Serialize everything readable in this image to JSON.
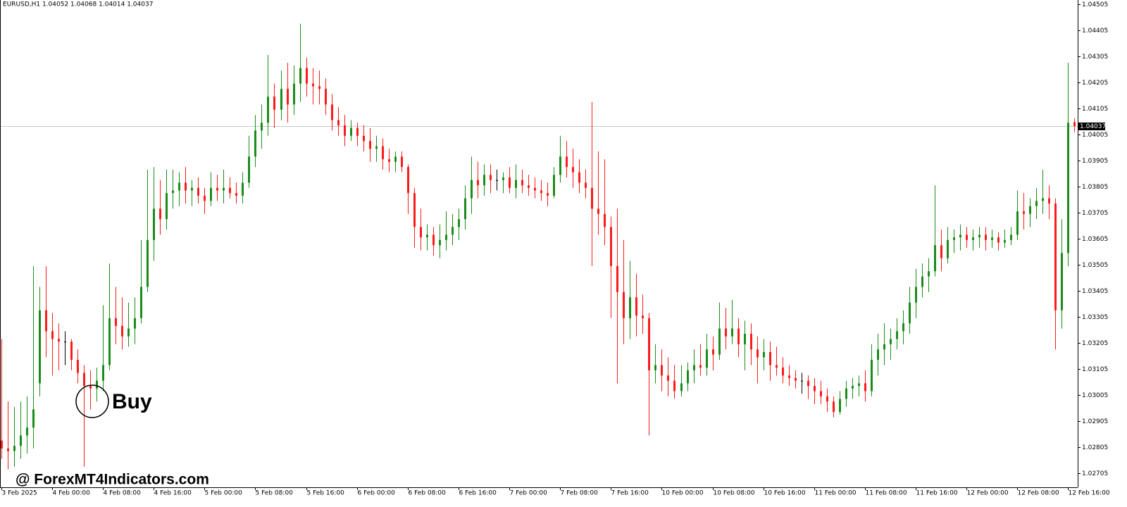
{
  "chart_data": {
    "type": "candlestick",
    "title": "EURUSD,H1  1.04052 1.04068 1.04014 1.04037",
    "current_price": 1.04037,
    "annotation": "Buy",
    "watermark": "@ ForexMT4Indicators.com",
    "up_color": "#1a8c1a",
    "down_color": "#ff1a1a",
    "doji_color": "#000000",
    "price_line_color": "#c8c8c8",
    "ylim": [
      1.02651,
      1.04521
    ],
    "yticks": [
      1.04505,
      1.04405,
      1.04305,
      1.04205,
      1.04105,
      1.04005,
      1.03905,
      1.03805,
      1.03705,
      1.03605,
      1.03505,
      1.03405,
      1.03305,
      1.03205,
      1.03105,
      1.03005,
      1.02905,
      1.02805,
      1.02705
    ],
    "xlim": [
      -0.2,
      169.5
    ],
    "xticks": [
      {
        "value": 0,
        "label": "3 Feb 2025"
      },
      {
        "value": 8,
        "label": "4 Feb 00:00"
      },
      {
        "value": 16,
        "label": "4 Feb 08:00"
      },
      {
        "value": 24,
        "label": "4 Feb 16:00"
      },
      {
        "value": 32,
        "label": "5 Feb 00:00"
      },
      {
        "value": 40,
        "label": "5 Feb 08:00"
      },
      {
        "value": 48,
        "label": "5 Feb 16:00"
      },
      {
        "value": 56,
        "label": "6 Feb 00:00"
      },
      {
        "value": 64,
        "label": "6 Feb 08:00"
      },
      {
        "value": 72,
        "label": "6 Feb 16:00"
      },
      {
        "value": 80,
        "label": "7 Feb 00:00"
      },
      {
        "value": 88,
        "label": "7 Feb 08:00"
      },
      {
        "value": 96,
        "label": "7 Feb 16:00"
      },
      {
        "value": 104,
        "label": "10 Feb 00:00"
      },
      {
        "value": 112,
        "label": "10 Feb 08:00"
      },
      {
        "value": 120,
        "label": "10 Feb 16:00"
      },
      {
        "value": 128,
        "label": "11 Feb 00:00"
      },
      {
        "value": 136,
        "label": "11 Feb 08:00"
      },
      {
        "value": 144,
        "label": "11 Feb 16:00"
      },
      {
        "value": 152,
        "label": "12 Feb 00:00"
      },
      {
        "value": 160,
        "label": "12 Feb 08:00"
      },
      {
        "value": 168,
        "label": "12 Feb 16:00"
      }
    ],
    "ohlc": [
      [
        1.0283,
        1.0322,
        1.0276,
        1.028
      ],
      [
        1.028,
        1.0298,
        1.0272,
        1.0279
      ],
      [
        1.0279,
        1.0296,
        1.0273,
        1.0281
      ],
      [
        1.0281,
        1.0298,
        1.0276,
        1.0285
      ],
      [
        1.0285,
        1.03,
        1.0278,
        1.0288
      ],
      [
        1.0288,
        1.035,
        1.028,
        1.0295
      ],
      [
        1.0305,
        1.0342,
        1.03,
        1.0333
      ],
      [
        1.0333,
        1.035,
        1.0315,
        1.0325
      ],
      [
        1.0325,
        1.0332,
        1.0308,
        1.0322
      ],
      [
        1.0322,
        1.0328,
        1.031,
        1.0321
      ],
      [
        1.0321,
        1.0325,
        1.0312,
        1.0321
      ],
      [
        1.0321,
        1.0322,
        1.031,
        1.0314
      ],
      [
        1.0314,
        1.0318,
        1.0305,
        1.0309
      ],
      [
        1.0309,
        1.0312,
        1.0273,
        1.0304
      ],
      [
        1.0304,
        1.031,
        1.0295,
        1.0303
      ],
      [
        1.0303,
        1.0311,
        1.0298,
        1.0306
      ],
      [
        1.0306,
        1.0335,
        1.0302,
        1.0312
      ],
      [
        1.0312,
        1.0351,
        1.031,
        1.033
      ],
      [
        1.033,
        1.0342,
        1.032,
        1.0327
      ],
      [
        1.0327,
        1.0338,
        1.0318,
        1.0323
      ],
      [
        1.0323,
        1.0336,
        1.0319,
        1.0326
      ],
      [
        1.0326,
        1.0338,
        1.032,
        1.033
      ],
      [
        1.033,
        1.036,
        1.0328,
        1.0342
      ],
      [
        1.0342,
        1.0387,
        1.034,
        1.036
      ],
      [
        1.036,
        1.0388,
        1.0352,
        1.0372
      ],
      [
        1.0372,
        1.0383,
        1.0362,
        1.0368
      ],
      [
        1.0368,
        1.0387,
        1.0364,
        1.0378
      ],
      [
        1.0378,
        1.0387,
        1.0372,
        1.0379
      ],
      [
        1.0379,
        1.0386,
        1.0373,
        1.0382
      ],
      [
        1.0382,
        1.0388,
        1.0374,
        1.0379
      ],
      [
        1.0379,
        1.0383,
        1.0373,
        1.038
      ],
      [
        1.038,
        1.0384,
        1.0374,
        1.0377
      ],
      [
        1.0377,
        1.038,
        1.037,
        1.0375
      ],
      [
        1.0375,
        1.0386,
        1.0373,
        1.038
      ],
      [
        1.038,
        1.0385,
        1.0375,
        1.0379
      ],
      [
        1.0379,
        1.0387,
        1.0374,
        1.038
      ],
      [
        1.038,
        1.0384,
        1.0376,
        1.0378
      ],
      [
        1.0378,
        1.0382,
        1.0374,
        1.0377
      ],
      [
        1.0377,
        1.0386,
        1.0374,
        1.0382
      ],
      [
        1.0382,
        1.04,
        1.038,
        1.0392
      ],
      [
        1.0392,
        1.0408,
        1.0388,
        1.0402
      ],
      [
        1.0402,
        1.0412,
        1.0395,
        1.0405
      ],
      [
        1.0405,
        1.0431,
        1.04,
        1.0415
      ],
      [
        1.0415,
        1.042,
        1.0403,
        1.041
      ],
      [
        1.041,
        1.0425,
        1.0406,
        1.0418
      ],
      [
        1.0418,
        1.0428,
        1.0405,
        1.0412
      ],
      [
        1.0412,
        1.0427,
        1.0408,
        1.042
      ],
      [
        1.042,
        1.0443,
        1.0413,
        1.0426
      ],
      [
        1.0426,
        1.043,
        1.0415,
        1.042
      ],
      [
        1.042,
        1.0426,
        1.0412,
        1.0419
      ],
      [
        1.0419,
        1.0425,
        1.0412,
        1.0418
      ],
      [
        1.0418,
        1.0422,
        1.0408,
        1.0412
      ],
      [
        1.0412,
        1.0416,
        1.0402,
        1.0406
      ],
      [
        1.0406,
        1.0411,
        1.04,
        1.0404
      ],
      [
        1.0404,
        1.0408,
        1.0396,
        1.04
      ],
      [
        1.04,
        1.0406,
        1.0398,
        1.0403
      ],
      [
        1.0403,
        1.0405,
        1.0396,
        1.04
      ],
      [
        1.04,
        1.0404,
        1.0394,
        1.0398
      ],
      [
        1.0398,
        1.0403,
        1.039,
        1.0395
      ],
      [
        1.0395,
        1.04,
        1.039,
        1.0396
      ],
      [
        1.0396,
        1.0399,
        1.0387,
        1.0391
      ],
      [
        1.0391,
        1.0395,
        1.0386,
        1.039
      ],
      [
        1.039,
        1.0394,
        1.0386,
        1.0392
      ],
      [
        1.0392,
        1.0394,
        1.0386,
        1.0388
      ],
      [
        1.0388,
        1.0389,
        1.037,
        1.0378
      ],
      [
        1.0378,
        1.038,
        1.0357,
        1.0365
      ],
      [
        1.0365,
        1.0372,
        1.0356,
        1.0361
      ],
      [
        1.0361,
        1.0366,
        1.0356,
        1.0362
      ],
      [
        1.0362,
        1.0365,
        1.0354,
        1.0358
      ],
      [
        1.0358,
        1.0366,
        1.0353,
        1.036
      ],
      [
        1.036,
        1.0371,
        1.0356,
        1.0362
      ],
      [
        1.0362,
        1.037,
        1.0358,
        1.0365
      ],
      [
        1.0365,
        1.0372,
        1.036,
        1.0368
      ],
      [
        1.0368,
        1.0381,
        1.0364,
        1.0376
      ],
      [
        1.0376,
        1.0392,
        1.037,
        1.0383
      ],
      [
        1.0383,
        1.039,
        1.0376,
        1.0381
      ],
      [
        1.0381,
        1.0389,
        1.0377,
        1.0385
      ],
      [
        1.0385,
        1.0389,
        1.0378,
        1.0383
      ],
      [
        1.0383,
        1.0387,
        1.0379,
        1.0383
      ],
      [
        1.0383,
        1.0386,
        1.0378,
        1.0384
      ],
      [
        1.0384,
        1.0388,
        1.0378,
        1.038
      ],
      [
        1.038,
        1.0389,
        1.0376,
        1.0383
      ],
      [
        1.0383,
        1.0387,
        1.0378,
        1.0381
      ],
      [
        1.0381,
        1.0385,
        1.0377,
        1.038
      ],
      [
        1.038,
        1.0384,
        1.0376,
        1.0379
      ],
      [
        1.0379,
        1.0383,
        1.0375,
        1.0378
      ],
      [
        1.0378,
        1.0382,
        1.0373,
        1.0377
      ],
      [
        1.0377,
        1.0388,
        1.0376,
        1.0385
      ],
      [
        1.0385,
        1.04,
        1.0382,
        1.0392
      ],
      [
        1.0392,
        1.0398,
        1.0384,
        1.0388
      ],
      [
        1.0388,
        1.0395,
        1.038,
        1.0386
      ],
      [
        1.0386,
        1.0391,
        1.0378,
        1.0382
      ],
      [
        1.0382,
        1.0387,
        1.0376,
        1.038
      ],
      [
        1.038,
        1.0413,
        1.035,
        1.0372
      ],
      [
        1.0372,
        1.0394,
        1.0362,
        1.037
      ],
      [
        1.037,
        1.0391,
        1.0358,
        1.0365
      ],
      [
        1.0365,
        1.0369,
        1.033,
        1.035
      ],
      [
        1.035,
        1.0372,
        1.0305,
        1.034
      ],
      [
        1.034,
        1.036,
        1.032,
        1.033
      ],
      [
        1.033,
        1.0352,
        1.0322,
        1.0338
      ],
      [
        1.0338,
        1.0347,
        1.0323,
        1.0331
      ],
      [
        1.0331,
        1.0339,
        1.0324,
        1.033
      ],
      [
        1.033,
        1.0332,
        1.0285,
        1.031
      ],
      [
        1.031,
        1.032,
        1.0305,
        1.0312
      ],
      [
        1.0312,
        1.0318,
        1.0302,
        1.0308
      ],
      [
        1.0308,
        1.0315,
        1.03,
        1.0306
      ],
      [
        1.0306,
        1.0312,
        1.0299,
        1.0302
      ],
      [
        1.0302,
        1.0312,
        1.03,
        1.0305
      ],
      [
        1.0305,
        1.0313,
        1.0302,
        1.031
      ],
      [
        1.031,
        1.0318,
        1.0305,
        1.0312
      ],
      [
        1.0312,
        1.032,
        1.0308,
        1.0311
      ],
      [
        1.0311,
        1.0324,
        1.0308,
        1.0318
      ],
      [
        1.0318,
        1.0323,
        1.031,
        1.0316
      ],
      [
        1.0316,
        1.0336,
        1.0314,
        1.0326
      ],
      [
        1.0326,
        1.0334,
        1.0318,
        1.0323
      ],
      [
        1.0323,
        1.0337,
        1.032,
        1.0326
      ],
      [
        1.0326,
        1.033,
        1.0315,
        1.032
      ],
      [
        1.032,
        1.0329,
        1.031,
        1.0324
      ],
      [
        1.0324,
        1.0328,
        1.0312,
        1.0318
      ],
      [
        1.0318,
        1.0323,
        1.0305,
        1.0315
      ],
      [
        1.0315,
        1.0322,
        1.031,
        1.0317
      ],
      [
        1.0317,
        1.0321,
        1.0306,
        1.0312
      ],
      [
        1.0312,
        1.0319,
        1.0308,
        1.0311
      ],
      [
        1.0311,
        1.0315,
        1.0305,
        1.0308
      ],
      [
        1.0308,
        1.0312,
        1.0304,
        1.0307
      ],
      [
        1.0307,
        1.031,
        1.0303,
        1.0306
      ],
      [
        1.0306,
        1.0309,
        1.0301,
        1.0306
      ],
      [
        1.0306,
        1.0308,
        1.0299,
        1.0304
      ],
      [
        1.0304,
        1.0307,
        1.0297,
        1.0302
      ],
      [
        1.0302,
        1.0306,
        1.0297,
        1.03
      ],
      [
        1.03,
        1.0303,
        1.0294,
        1.0298
      ],
      [
        1.0298,
        1.03,
        1.0292,
        1.0294
      ],
      [
        1.0294,
        1.0302,
        1.0293,
        1.0299
      ],
      [
        1.0299,
        1.0306,
        1.0296,
        1.0303
      ],
      [
        1.0303,
        1.0307,
        1.0299,
        1.0304
      ],
      [
        1.0304,
        1.0308,
        1.03,
        1.0305
      ],
      [
        1.0305,
        1.031,
        1.0298,
        1.0302
      ],
      [
        1.0302,
        1.032,
        1.03,
        1.0314
      ],
      [
        1.0314,
        1.0324,
        1.0308,
        1.0318
      ],
      [
        1.0318,
        1.0328,
        1.0312,
        1.032
      ],
      [
        1.032,
        1.0326,
        1.0314,
        1.0322
      ],
      [
        1.0322,
        1.033,
        1.0318,
        1.0325
      ],
      [
        1.0325,
        1.0333,
        1.032,
        1.0328
      ],
      [
        1.0328,
        1.0342,
        1.0324,
        1.0336
      ],
      [
        1.0336,
        1.0349,
        1.033,
        1.0342
      ],
      [
        1.0342,
        1.0351,
        1.0338,
        1.0346
      ],
      [
        1.0346,
        1.0353,
        1.034,
        1.0348
      ],
      [
        1.0348,
        1.0381,
        1.0346,
        1.0358
      ],
      [
        1.0358,
        1.0364,
        1.0348,
        1.0353
      ],
      [
        1.0353,
        1.0365,
        1.0351,
        1.036
      ],
      [
        1.036,
        1.0364,
        1.0355,
        1.0361
      ],
      [
        1.0361,
        1.0366,
        1.0356,
        1.0362
      ],
      [
        1.0362,
        1.0365,
        1.0357,
        1.036
      ],
      [
        1.036,
        1.0364,
        1.0356,
        1.0361
      ],
      [
        1.0361,
        1.0365,
        1.0357,
        1.0362
      ],
      [
        1.0362,
        1.0365,
        1.0356,
        1.036
      ],
      [
        1.036,
        1.0364,
        1.0357,
        1.0361
      ],
      [
        1.0361,
        1.0363,
        1.0356,
        1.0359
      ],
      [
        1.0359,
        1.0364,
        1.0357,
        1.036
      ],
      [
        1.036,
        1.0365,
        1.0358,
        1.0362
      ],
      [
        1.0362,
        1.0379,
        1.036,
        1.0371
      ],
      [
        1.0371,
        1.0378,
        1.0364,
        1.037
      ],
      [
        1.037,
        1.0376,
        1.0365,
        1.0373
      ],
      [
        1.0373,
        1.038,
        1.0368,
        1.0375
      ],
      [
        1.0375,
        1.0387,
        1.037,
        1.0376
      ],
      [
        1.0376,
        1.0381,
        1.0368,
        1.0374
      ],
      [
        1.0374,
        1.0376,
        1.0318,
        1.0333
      ],
      [
        1.0333,
        1.0368,
        1.0326,
        1.0355
      ],
      [
        1.0355,
        1.0428,
        1.035,
        1.0405
      ],
      [
        1.04052,
        1.04068,
        1.04014,
        1.04037
      ]
    ]
  }
}
